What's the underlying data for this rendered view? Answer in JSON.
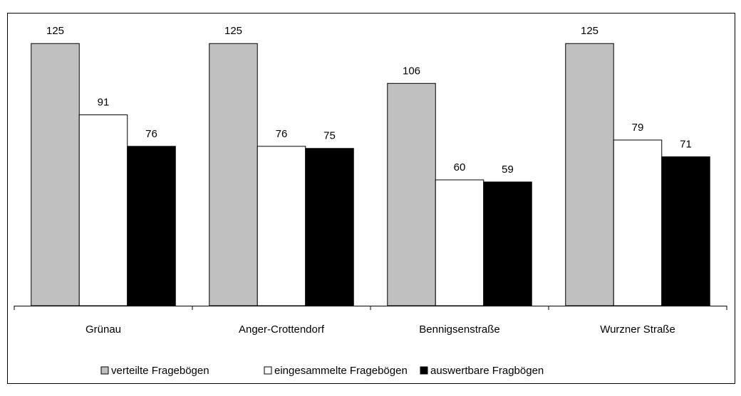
{
  "chart_data": {
    "type": "bar",
    "categories": [
      "Grünau",
      "Anger-Crottendorf",
      "Bennigsenstraße",
      "Wurzner Straße"
    ],
    "series": [
      {
        "name": "verteilte Fragebögen",
        "color": "#c0c0c0",
        "values": [
          125,
          125,
          106,
          125
        ]
      },
      {
        "name": "eingesammelte Fragebögen",
        "color": "#ffffff",
        "values": [
          91,
          76,
          60,
          79
        ]
      },
      {
        "name": "auswertbare Fragbögen",
        "color": "#000000",
        "values": [
          76,
          75,
          59,
          71
        ]
      }
    ],
    "ylim": [
      0,
      140
    ],
    "legend": "bottom"
  }
}
